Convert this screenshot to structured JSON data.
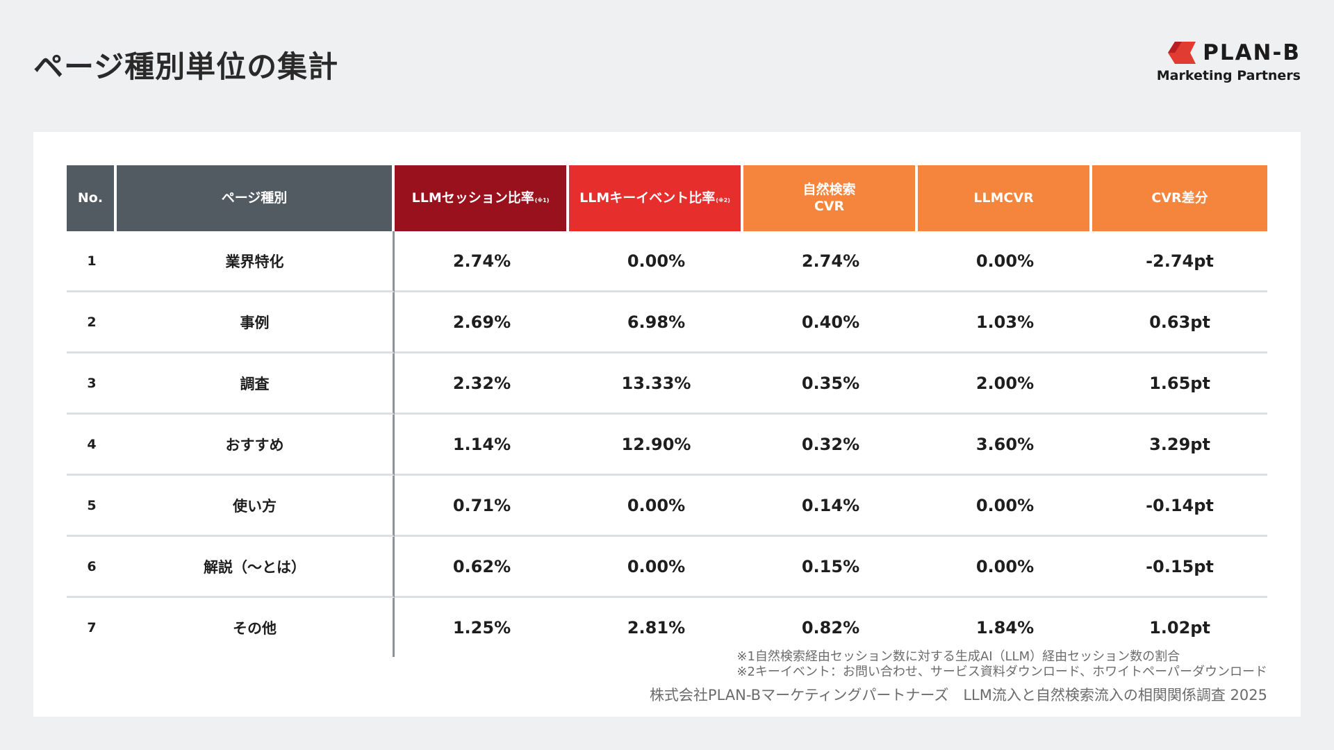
{
  "title": "ページ種別単位の集計",
  "logo": {
    "name": "PLAN-B",
    "sub": "Marketing Partners",
    "mark_color": "#e03c31"
  },
  "table": {
    "headers": [
      {
        "label": "No.",
        "note": ""
      },
      {
        "label": "ページ種別",
        "note": ""
      },
      {
        "label": "LLMセッション比率",
        "note": "(※1)"
      },
      {
        "label": "LLMキーイベント比率",
        "note": "(※2)"
      },
      {
        "label": "自然検索",
        "label2": "CVR",
        "note": ""
      },
      {
        "label": "LLMCVR",
        "note": ""
      },
      {
        "label": "CVR差分",
        "note": ""
      }
    ],
    "rows": [
      {
        "no": "1",
        "type": "業界特化",
        "llm_session": "2.74%",
        "llm_key": "0.00%",
        "organic_cvr": "2.74%",
        "llm_cvr": "0.00%",
        "diff": "-2.74pt"
      },
      {
        "no": "2",
        "type": "事例",
        "llm_session": "2.69%",
        "llm_key": "6.98%",
        "organic_cvr": "0.40%",
        "llm_cvr": "1.03%",
        "diff": "0.63pt"
      },
      {
        "no": "3",
        "type": "調査",
        "llm_session": "2.32%",
        "llm_key": "13.33%",
        "organic_cvr": "0.35%",
        "llm_cvr": "2.00%",
        "diff": "1.65pt"
      },
      {
        "no": "4",
        "type": "おすすめ",
        "llm_session": "1.14%",
        "llm_key": "12.90%",
        "organic_cvr": "0.32%",
        "llm_cvr": "3.60%",
        "diff": "3.29pt"
      },
      {
        "no": "5",
        "type": "使い方",
        "llm_session": "0.71%",
        "llm_key": "0.00%",
        "organic_cvr": "0.14%",
        "llm_cvr": "0.00%",
        "diff": "-0.14pt"
      },
      {
        "no": "6",
        "type": "解説（〜とは）",
        "llm_session": "0.62%",
        "llm_key": "0.00%",
        "organic_cvr": "0.15%",
        "llm_cvr": "0.00%",
        "diff": "-0.15pt"
      },
      {
        "no": "7",
        "type": "その他",
        "llm_session": "1.25%",
        "llm_key": "2.81%",
        "organic_cvr": "0.82%",
        "llm_cvr": "1.84%",
        "diff": "1.02pt"
      }
    ]
  },
  "notes": [
    "※1自然検索経由セッション数に対する生成AI（LLM）経由セッション数の割合",
    "※2キーイベント：お問い合わせ、サービス資料ダウンロード、ホワイトペーパーダウンロード"
  ],
  "footer": "株式会社PLAN-Bマーケティングパートナーズ　LLM流入と自然検索流入の相関関係調査 2025",
  "colors": {
    "header_gray": "#525a62",
    "header_dark_red": "#98111c",
    "header_red": "#e62e2d",
    "header_orange": "#f5843d",
    "background": "#eff0f2"
  }
}
